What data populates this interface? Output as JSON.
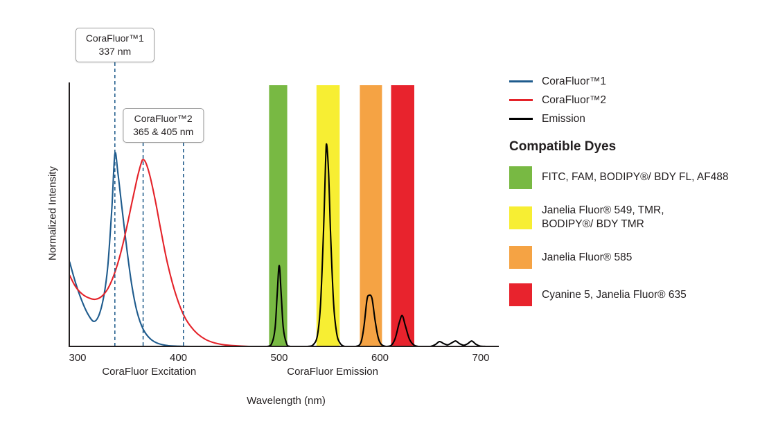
{
  "chart_data": {
    "type": "line",
    "title": "",
    "xlabel": "Wavelength (nm)",
    "ylabel": "Normalized Intensity",
    "x_range": [
      292,
      717
    ],
    "x_ticks": [
      300,
      400,
      500,
      600,
      700
    ],
    "y_range": [
      0,
      1.1
    ],
    "grid": false,
    "dashed_line_color": "#27618f",
    "axis_color": "#231f20",
    "group_labels": [
      {
        "text": "CoraFluor Excitation",
        "center_nm": 371
      },
      {
        "text": "CoraFluor Emission",
        "center_nm": 553
      }
    ],
    "callouts": [
      {
        "line1": "CoraFluor™1",
        "line2": "337 nm",
        "wavelengths": [
          337
        ]
      },
      {
        "line1": "CoraFluor™2",
        "line2": "365 & 405 nm",
        "wavelengths": [
          365,
          405
        ]
      }
    ],
    "bands": [
      {
        "name": "green",
        "from_nm": 490,
        "to_nm": 508,
        "color": "#78b943"
      },
      {
        "name": "yellow",
        "from_nm": 537,
        "to_nm": 560,
        "color": "#f7ee33"
      },
      {
        "name": "orange",
        "from_nm": 580,
        "to_nm": 602,
        "color": "#f5a344"
      },
      {
        "name": "red",
        "from_nm": 611,
        "to_nm": 634,
        "color": "#e8232d"
      }
    ],
    "series": [
      {
        "name": "CoraFluor™1",
        "color": "#1e5b8d",
        "points": [
          [
            292,
            0.44
          ],
          [
            298,
            0.33
          ],
          [
            304,
            0.24
          ],
          [
            310,
            0.17
          ],
          [
            316,
            0.13
          ],
          [
            321,
            0.16
          ],
          [
            326,
            0.26
          ],
          [
            330,
            0.42
          ],
          [
            334,
            0.72
          ],
          [
            337,
            1.0
          ],
          [
            340,
            0.9
          ],
          [
            344,
            0.72
          ],
          [
            349,
            0.5
          ],
          [
            354,
            0.31
          ],
          [
            359,
            0.18
          ],
          [
            365,
            0.09
          ],
          [
            372,
            0.04
          ],
          [
            380,
            0.015
          ],
          [
            390,
            0.004
          ],
          [
            400,
            0.001
          ],
          [
            412,
            0.0
          ]
        ]
      },
      {
        "name": "CoraFluor™2",
        "color": "#e42229",
        "points": [
          [
            292,
            0.37
          ],
          [
            298,
            0.31
          ],
          [
            305,
            0.27
          ],
          [
            312,
            0.25
          ],
          [
            318,
            0.245
          ],
          [
            324,
            0.26
          ],
          [
            330,
            0.3
          ],
          [
            336,
            0.37
          ],
          [
            342,
            0.47
          ],
          [
            348,
            0.6
          ],
          [
            354,
            0.75
          ],
          [
            359,
            0.87
          ],
          [
            363,
            0.95
          ],
          [
            365,
            0.97
          ],
          [
            368,
            0.95
          ],
          [
            372,
            0.88
          ],
          [
            377,
            0.76
          ],
          [
            382,
            0.62
          ],
          [
            388,
            0.46
          ],
          [
            394,
            0.33
          ],
          [
            400,
            0.23
          ],
          [
            406,
            0.155
          ],
          [
            412,
            0.105
          ],
          [
            419,
            0.065
          ],
          [
            427,
            0.036
          ],
          [
            436,
            0.018
          ],
          [
            446,
            0.008
          ],
          [
            458,
            0.003
          ],
          [
            470,
            0.0
          ]
        ]
      },
      {
        "name": "Emission",
        "color": "#000000",
        "points": [
          [
            470,
            0.0
          ],
          [
            488,
            0.0
          ],
          [
            493,
            0.02
          ],
          [
            496,
            0.1
          ],
          [
            498,
            0.27
          ],
          [
            500,
            0.42
          ],
          [
            502,
            0.27
          ],
          [
            504,
            0.1
          ],
          [
            507,
            0.02
          ],
          [
            511,
            0.0
          ],
          [
            528,
            0.0
          ],
          [
            534,
            0.01
          ],
          [
            538,
            0.06
          ],
          [
            541,
            0.22
          ],
          [
            544,
            0.6
          ],
          [
            546,
            0.95
          ],
          [
            547,
            1.05
          ],
          [
            549,
            0.9
          ],
          [
            551,
            0.58
          ],
          [
            554,
            0.22
          ],
          [
            557,
            0.07
          ],
          [
            560,
            0.02
          ],
          [
            565,
            0.0
          ],
          [
            576,
            0.0
          ],
          [
            581,
            0.02
          ],
          [
            584,
            0.1
          ],
          [
            587,
            0.24
          ],
          [
            589,
            0.265
          ],
          [
            592,
            0.25
          ],
          [
            595,
            0.14
          ],
          [
            598,
            0.05
          ],
          [
            601,
            0.012
          ],
          [
            606,
            0.0
          ],
          [
            611,
            0.005
          ],
          [
            615,
            0.04
          ],
          [
            619,
            0.12
          ],
          [
            622,
            0.16
          ],
          [
            625,
            0.11
          ],
          [
            629,
            0.04
          ],
          [
            633,
            0.01
          ],
          [
            638,
            0.0
          ],
          [
            650,
            0.0
          ],
          [
            655,
            0.01
          ],
          [
            659,
            0.025
          ],
          [
            663,
            0.015
          ],
          [
            667,
            0.008
          ],
          [
            671,
            0.018
          ],
          [
            675,
            0.028
          ],
          [
            679,
            0.014
          ],
          [
            683,
            0.006
          ],
          [
            687,
            0.014
          ],
          [
            691,
            0.028
          ],
          [
            695,
            0.012
          ],
          [
            699,
            0.002
          ],
          [
            705,
            0.0
          ]
        ]
      }
    ]
  },
  "legend": {
    "series": [
      {
        "label": "CoraFluor™1",
        "color": "#1e5b8d"
      },
      {
        "label": "CoraFluor™2",
        "color": "#e42229"
      },
      {
        "label": "Emission",
        "color": "#000000"
      }
    ],
    "dyes_heading": "Compatible Dyes",
    "dyes": [
      {
        "label": "FITC, FAM, BODIPY®/ BDY FL, AF488",
        "color": "#78b943"
      },
      {
        "label": "Janelia Fluor® 549, TMR,\nBODIPY®/ BDY TMR",
        "color": "#f7ee33"
      },
      {
        "label": "Janelia Fluor® 585",
        "color": "#f5a344"
      },
      {
        "label": "Cyanine 5, Janelia Fluor® 635",
        "color": "#e8232d"
      }
    ]
  }
}
